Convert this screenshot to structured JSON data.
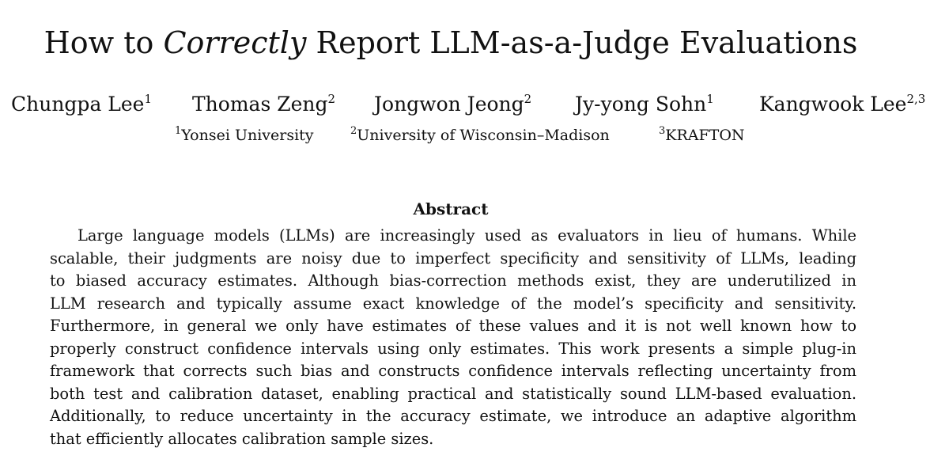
{
  "title": {
    "before": "How to ",
    "emphasis": "Correctly",
    "after": " Report LLM-as-a-Judge Evaluations"
  },
  "authors": [
    {
      "name": "Chungpa Lee",
      "affil": "1"
    },
    {
      "name": "Thomas Zeng",
      "affil": "2"
    },
    {
      "name": "Jongwon Jeong",
      "affil": "2"
    },
    {
      "name": "Jy-yong Sohn",
      "affil": "1"
    },
    {
      "name": "Kangwook Lee",
      "affil": "2,3"
    }
  ],
  "affiliations": [
    {
      "mark": "1",
      "name": "Yonsei University"
    },
    {
      "mark": "2",
      "name": "University of Wisconsin–Madison"
    },
    {
      "mark": "3",
      "name": "KRAFTON"
    }
  ],
  "abstract": {
    "heading": "Abstract",
    "lines": [
      "Large language models (LLMs) are increasingly used as evaluators in lieu of humans. While",
      "scalable, their judgments are noisy due to imperfect specificity and sensitivity of LLMs, leading",
      "to biased accuracy estimates. Although bias-correction methods exist, they are underutilized in",
      "LLM research and typically assume exact knowledge of the model’s specificity and sensitivity.",
      "Furthermore, in general we only have estimates of these values and it is not well known how to",
      "properly construct confidence intervals using only estimates. This work presents a simple plug-in",
      "framework that corrects such bias and constructs confidence intervals reflecting uncertainty from",
      "both test and calibration dataset, enabling practical and statistically sound LLM-based evaluation.",
      "Additionally, to reduce uncertainty in the accuracy estimate, we introduce an adaptive algorithm",
      "that efficiently allocates calibration sample sizes."
    ]
  }
}
